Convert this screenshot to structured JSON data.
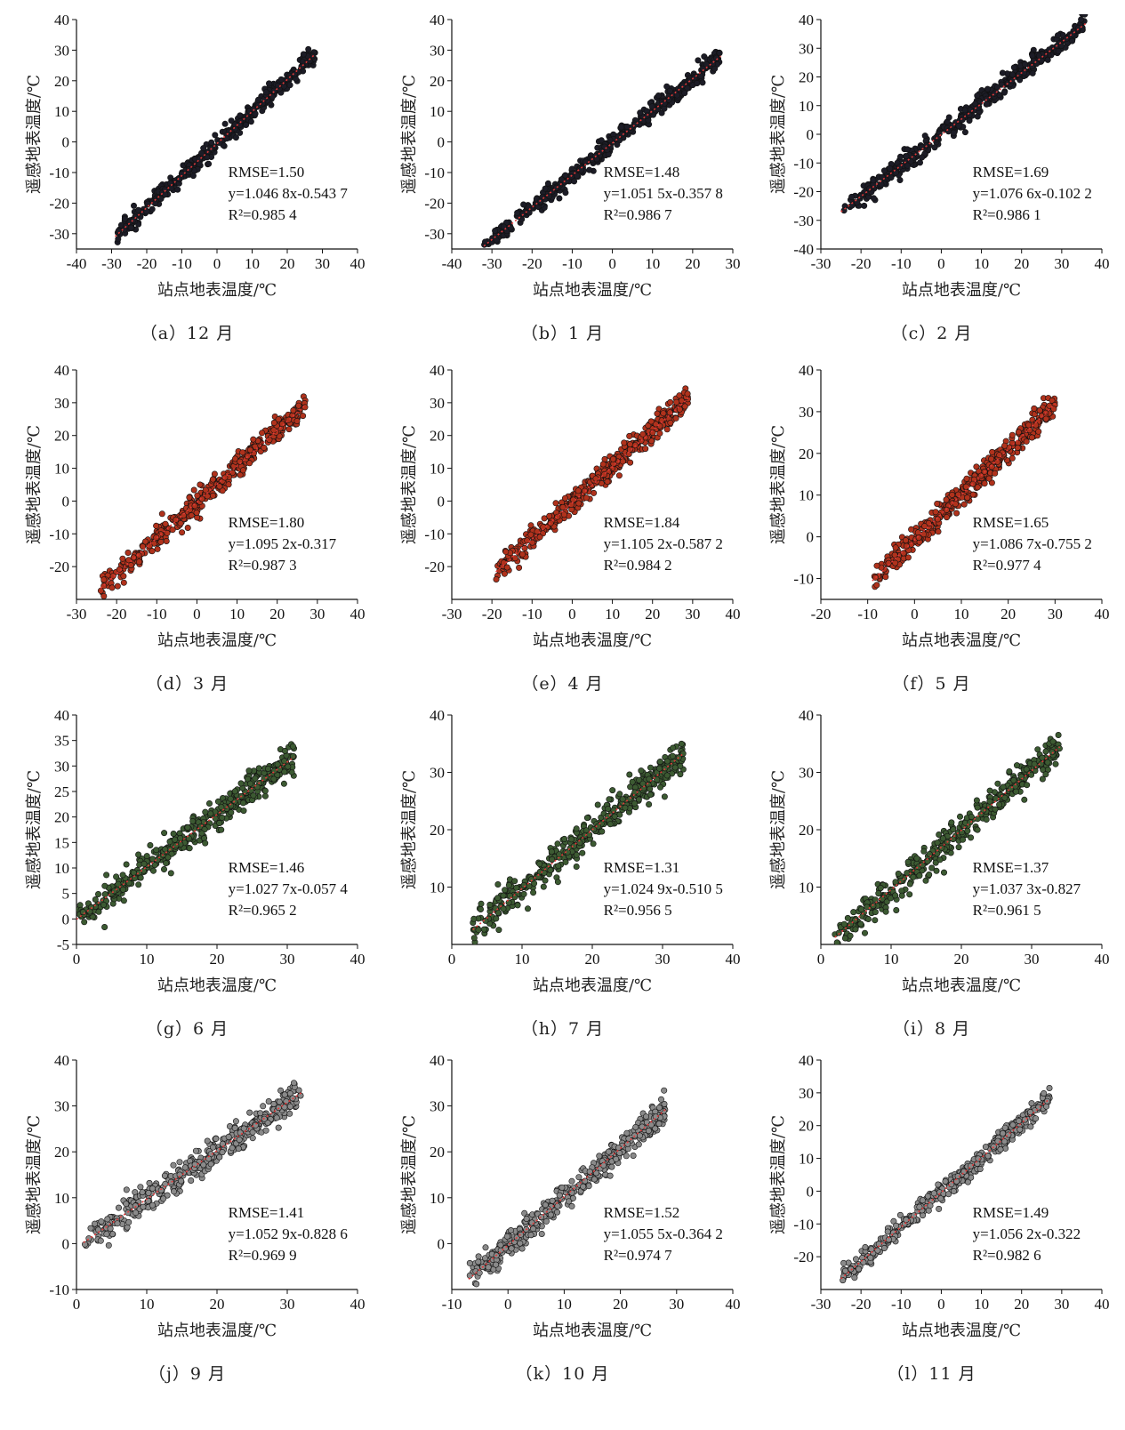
{
  "chart_data": [
    {
      "id": "a",
      "caption": "（a）12 月",
      "type": "scatter",
      "xlabel": "站点地表温度/℃",
      "ylabel": "遥感地表温度/℃",
      "xlim": [
        -40,
        40
      ],
      "ylim": [
        -35,
        40
      ],
      "xticks": [
        -40,
        -30,
        -20,
        -10,
        0,
        10,
        20,
        30,
        40
      ],
      "yticks": [
        -30,
        -20,
        -10,
        0,
        10,
        20,
        30,
        40
      ],
      "data_range": [
        -29,
        28
      ],
      "slope": 1.0468,
      "intercept": -0.5437,
      "rmse": "RMSE=1.50",
      "eq": "y=1.046 8x-0.543 7",
      "r2": "R²=0.985 4",
      "spread": 1.5,
      "point_color": "#1c1c26"
    },
    {
      "id": "b",
      "caption": "（b）1 月",
      "type": "scatter",
      "xlabel": "站点地表温度/℃",
      "ylabel": "遥感地表温度/℃",
      "xlim": [
        -40,
        30
      ],
      "ylim": [
        -35,
        40
      ],
      "xticks": [
        -40,
        -30,
        -20,
        -10,
        0,
        10,
        20,
        30
      ],
      "yticks": [
        -30,
        -20,
        -10,
        0,
        10,
        20,
        30,
        40
      ],
      "data_range": [
        -32,
        27
      ],
      "slope": 1.0515,
      "intercept": -0.3578,
      "rmse": "RMSE=1.48",
      "eq": "y=1.051 5x-0.357 8",
      "r2": "R²=0.986 7",
      "spread": 1.5,
      "point_color": "#1c1c26"
    },
    {
      "id": "c",
      "caption": "（c）2 月",
      "type": "scatter",
      "xlabel": "站点地表温度/℃",
      "ylabel": "遥感地表温度/℃",
      "xlim": [
        -30,
        40
      ],
      "ylim": [
        -40,
        40
      ],
      "xticks": [
        -30,
        -20,
        -10,
        0,
        10,
        20,
        30,
        40
      ],
      "yticks": [
        -40,
        -30,
        -20,
        -10,
        0,
        10,
        20,
        30,
        40
      ],
      "data_range": [
        -25,
        36
      ],
      "slope": 1.0766,
      "intercept": -0.1022,
      "rmse": "RMSE=1.69",
      "eq": "y=1.076 6x-0.102 2",
      "r2": "R²=0.986 1",
      "spread": 1.7,
      "point_color": "#1c1c26"
    },
    {
      "id": "d",
      "caption": "（d）3 月",
      "type": "scatter",
      "xlabel": "站点地表温度/℃",
      "ylabel": "遥感地表温度/℃",
      "xlim": [
        -30,
        40
      ],
      "ylim": [
        -30,
        40
      ],
      "xticks": [
        -30,
        -20,
        -10,
        0,
        10,
        20,
        30,
        40
      ],
      "yticks": [
        -20,
        -10,
        0,
        10,
        20,
        30,
        40
      ],
      "data_range": [
        -24,
        27
      ],
      "slope": 1.0952,
      "intercept": -0.317,
      "rmse": "RMSE=1.80",
      "eq": "y=1.095 2x-0.317",
      "r2": "R²=0.987 3",
      "spread": 1.8,
      "point_color": "#b0321c"
    },
    {
      "id": "e",
      "caption": "（e）4 月",
      "type": "scatter",
      "xlabel": "站点地表温度/℃",
      "ylabel": "遥感地表温度/℃",
      "xlim": [
        -30,
        40
      ],
      "ylim": [
        -30,
        40
      ],
      "xticks": [
        -30,
        -20,
        -10,
        0,
        10,
        20,
        30,
        40
      ],
      "yticks": [
        -20,
        -10,
        0,
        10,
        20,
        30,
        40
      ],
      "data_range": [
        -19,
        29
      ],
      "slope": 1.1052,
      "intercept": -0.5872,
      "rmse": "RMSE=1.84",
      "eq": "y=1.105 2x-0.587 2",
      "r2": "R²=0.984 2",
      "spread": 1.8,
      "point_color": "#b0321c"
    },
    {
      "id": "f",
      "caption": "（f）5 月",
      "type": "scatter",
      "xlabel": "站点地表温度/℃",
      "ylabel": "遥感地表温度/℃",
      "xlim": [
        -20,
        40
      ],
      "ylim": [
        -15,
        40
      ],
      "xticks": [
        -20,
        -10,
        0,
        10,
        20,
        30,
        40
      ],
      "yticks": [
        -10,
        0,
        10,
        20,
        30,
        40
      ],
      "data_range": [
        -9,
        30
      ],
      "slope": 1.0867,
      "intercept": -0.7552,
      "rmse": "RMSE=1.65",
      "eq": "y=1.086 7x-0.755 2",
      "r2": "R²=0.977 4",
      "spread": 1.6,
      "point_color": "#b0321c"
    },
    {
      "id": "g",
      "caption": "（g）6 月",
      "type": "scatter",
      "xlabel": "站点地表温度/℃",
      "ylabel": "遥感地表温度/℃",
      "xlim": [
        0,
        40
      ],
      "ylim": [
        -5,
        40
      ],
      "xticks": [
        0,
        10,
        20,
        30,
        40
      ],
      "yticks": [
        -5,
        0,
        5,
        10,
        15,
        20,
        25,
        30,
        35,
        40
      ],
      "data_range": [
        0,
        31
      ],
      "slope": 1.0277,
      "intercept": -0.0574,
      "rmse": "RMSE=1.46",
      "eq": "y=1.027 7x-0.057 4",
      "r2": "R²=0.965 2",
      "spread": 1.5,
      "point_color": "#3c5a32"
    },
    {
      "id": "h",
      "caption": "（h）7 月",
      "type": "scatter",
      "xlabel": "站点地表温度/℃",
      "ylabel": "遥感地表温度/℃",
      "xlim": [
        0,
        40
      ],
      "ylim": [
        0,
        40
      ],
      "xticks": [
        0,
        10,
        20,
        30,
        40
      ],
      "yticks": [
        10,
        20,
        30,
        40
      ],
      "data_range": [
        3,
        33
      ],
      "slope": 1.0249,
      "intercept": -0.5105,
      "rmse": "RMSE=1.31",
      "eq": "y=1.024 9x-0.510 5",
      "r2": "R²=0.956 5",
      "spread": 1.4,
      "point_color": "#3c5a32"
    },
    {
      "id": "i",
      "caption": "（i）8 月",
      "type": "scatter",
      "xlabel": "站点地表温度/℃",
      "ylabel": "遥感地表温度/℃",
      "xlim": [
        0,
        40
      ],
      "ylim": [
        0,
        40
      ],
      "xticks": [
        0,
        10,
        20,
        30,
        40
      ],
      "yticks": [
        10,
        20,
        30,
        40
      ],
      "data_range": [
        2,
        34
      ],
      "slope": 1.0373,
      "intercept": -0.827,
      "rmse": "RMSE=1.37",
      "eq": "y=1.037 3x-0.827",
      "r2": "R²=0.961 5",
      "spread": 1.4,
      "point_color": "#3c5a32"
    },
    {
      "id": "j",
      "caption": "（j）9 月",
      "type": "scatter",
      "xlabel": "站点地表温度/℃",
      "ylabel": "遥感地表温度/℃",
      "xlim": [
        0,
        40
      ],
      "ylim": [
        -10,
        40
      ],
      "xticks": [
        0,
        10,
        20,
        30,
        40
      ],
      "yticks": [
        -10,
        0,
        10,
        20,
        30,
        40
      ],
      "data_range": [
        1,
        32
      ],
      "slope": 1.0529,
      "intercept": -0.8286,
      "rmse": "RMSE=1.41",
      "eq": "y=1.052 9x-0.828 6",
      "r2": "R²=0.969 9",
      "spread": 1.5,
      "point_color": "#8a8a8a"
    },
    {
      "id": "k",
      "caption": "（k）10 月",
      "type": "scatter",
      "xlabel": "站点地表温度/℃",
      "ylabel": "遥感地表温度/℃",
      "xlim": [
        -10,
        40
      ],
      "ylim": [
        -10,
        40
      ],
      "xticks": [
        -10,
        0,
        10,
        20,
        30,
        40
      ],
      "yticks": [
        0,
        10,
        20,
        30,
        40
      ],
      "data_range": [
        -7,
        28
      ],
      "slope": 1.0555,
      "intercept": -0.3642,
      "rmse": "RMSE=1.52",
      "eq": "y=1.055 5x-0.364 2",
      "r2": "R²=0.974 7",
      "spread": 1.5,
      "point_color": "#8a8a8a"
    },
    {
      "id": "l",
      "caption": "（l）11 月",
      "type": "scatter",
      "xlabel": "站点地表温度/℃",
      "ylabel": "遥感地表温度/℃",
      "xlim": [
        -30,
        40
      ],
      "ylim": [
        -30,
        40
      ],
      "xticks": [
        -30,
        -20,
        -10,
        0,
        10,
        20,
        30,
        40
      ],
      "yticks": [
        -20,
        -10,
        0,
        10,
        20,
        30,
        40
      ],
      "data_range": [
        -25,
        27
      ],
      "slope": 1.0562,
      "intercept": -0.322,
      "rmse": "RMSE=1.49",
      "eq": "y=1.056 2x-0.322",
      "r2": "R²=0.982 6",
      "spread": 1.5,
      "point_color": "#8a8a8a"
    }
  ],
  "colors": {
    "fit_line": "#e23a3a",
    "axis": "#111111",
    "point_stroke": "#111111"
  }
}
